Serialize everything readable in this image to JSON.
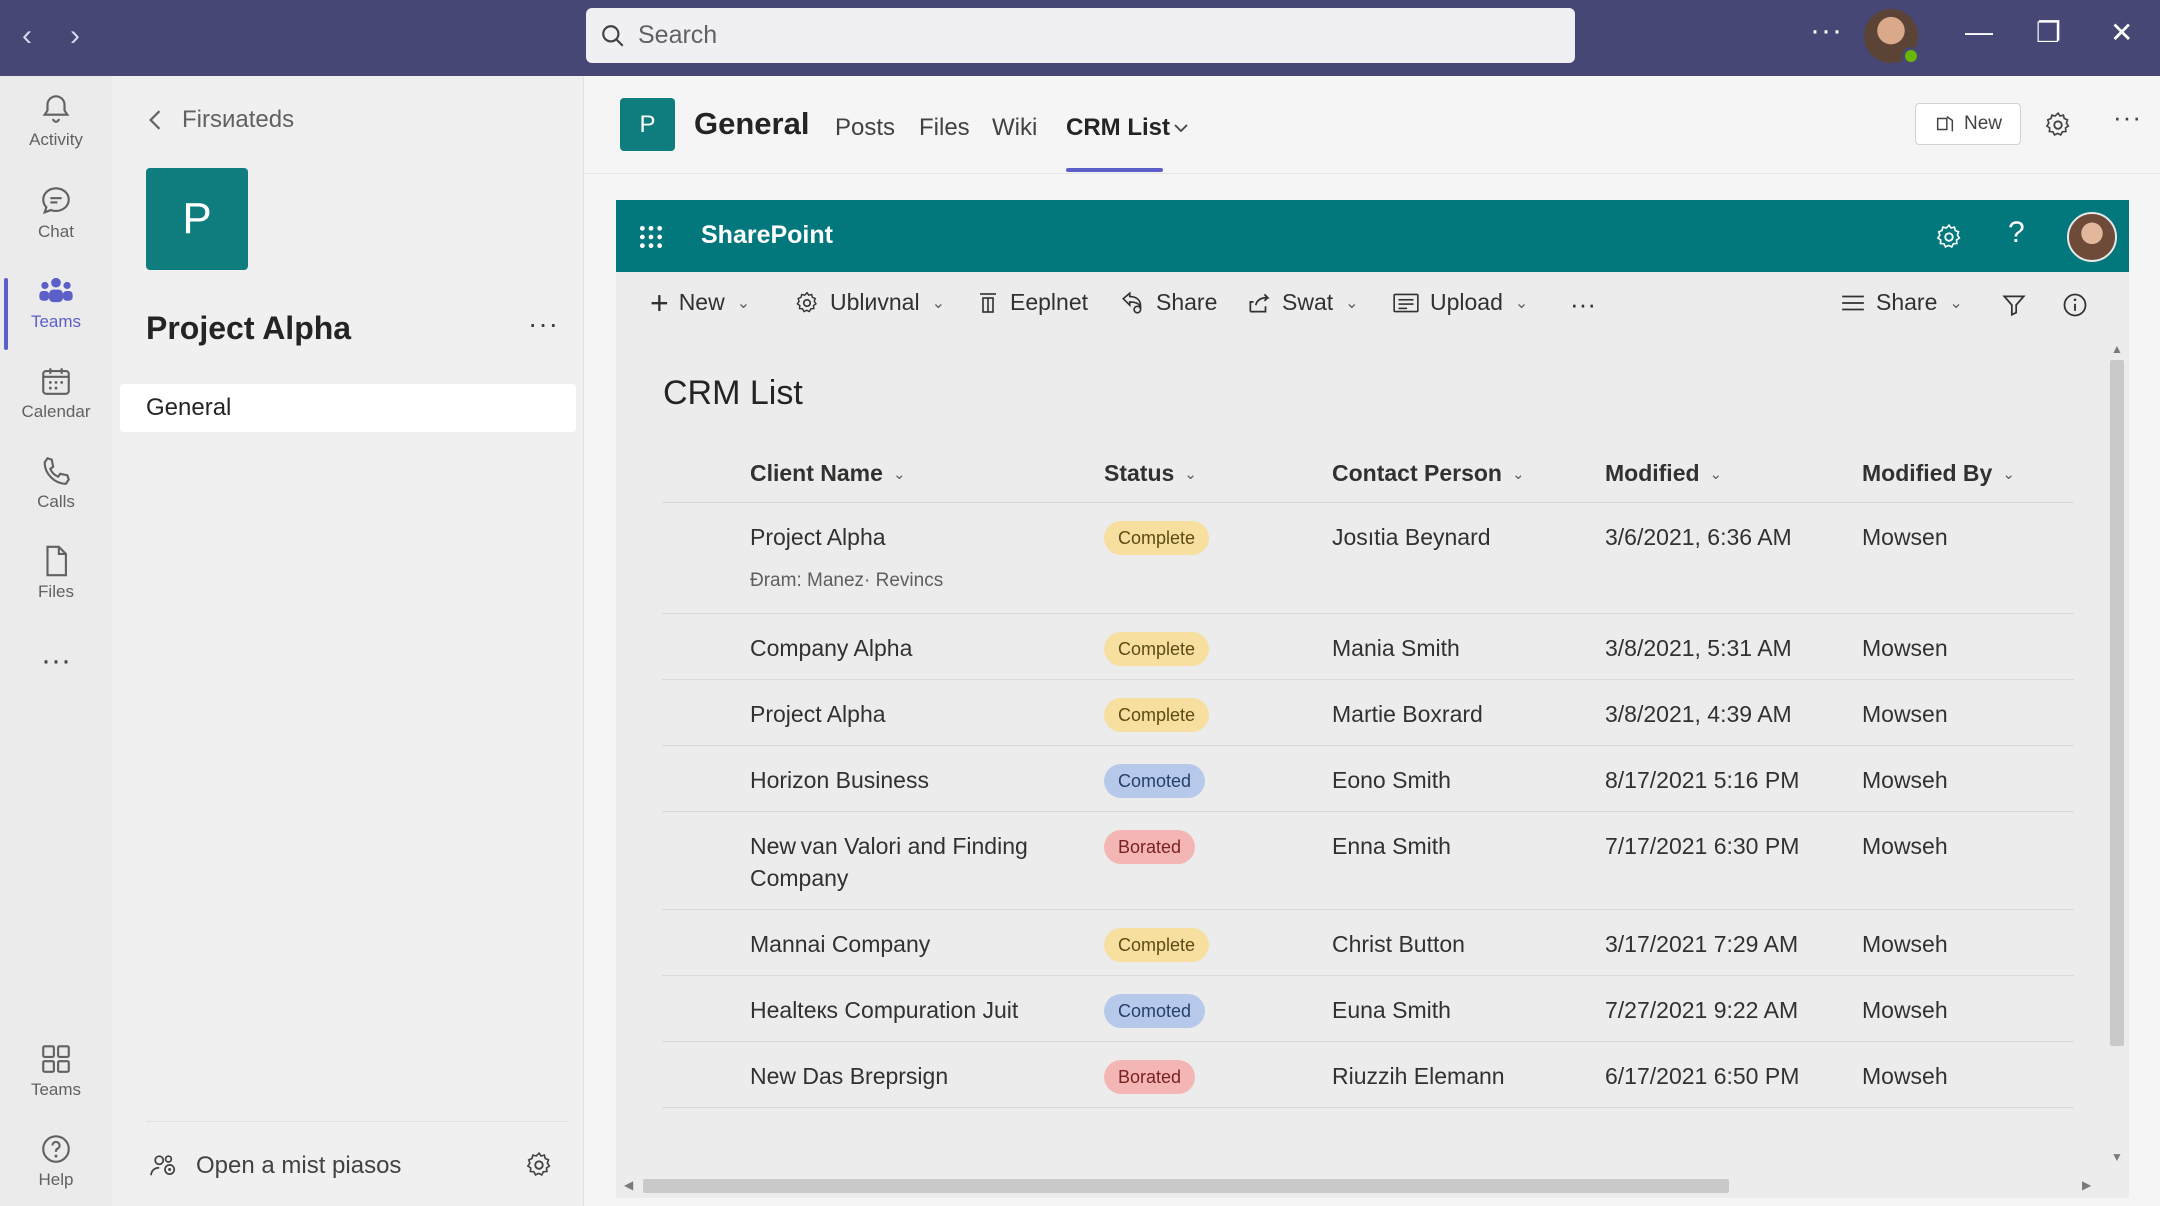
{
  "titlebar": {
    "search_placeholder": "Search",
    "more": "···"
  },
  "rail": {
    "items": [
      {
        "label": "Activity",
        "icon": "bell-icon"
      },
      {
        "label": "Chat",
        "icon": "chat-icon"
      },
      {
        "label": "Teams",
        "icon": "teams-icon",
        "active": true
      },
      {
        "label": "Calendar",
        "icon": "calendar-icon"
      },
      {
        "label": "Calls",
        "icon": "phone-icon"
      },
      {
        "label": "Files",
        "icon": "file-icon"
      }
    ],
    "more": "···",
    "bottom": [
      {
        "label": "Teams",
        "icon": "apps-icon"
      },
      {
        "label": "Help",
        "icon": "help-icon"
      }
    ]
  },
  "pane": {
    "back_label": "Firsиаteds",
    "team_initial": "P",
    "team_name": "Project Alpha",
    "more": "···",
    "channel": "General",
    "footer_label": "Open a mist piasos"
  },
  "header": {
    "channel_initial": "P",
    "channel_name": "General",
    "tabs": [
      "Posts",
      "Files",
      "Wiki",
      "CRM List"
    ],
    "new_label": "New",
    "more": "···"
  },
  "sharepoint": {
    "title": "SharePoint",
    "help": "?",
    "commands": {
      "new": "New",
      "upload1": "Ublиvnal",
      "export": "Eeplnet",
      "share": "Share",
      "swat": "Swat",
      "upload": "Upload",
      "more": "···",
      "share_right": "Share"
    },
    "list_title": "CRM List",
    "columns": [
      "Client Name",
      "Status",
      "Contact Person",
      "Modified",
      "Modified By"
    ],
    "rows": [
      {
        "client": "Project Alpha",
        "sub": "Đram: Manez· Revincs",
        "status": "Complete",
        "status_type": "complete",
        "contact": "Josıtia Beynard",
        "modified": "3/6/2021, 6:36 AM",
        "by": "Mowsen"
      },
      {
        "client": "Company Alpha",
        "status": "Complete",
        "status_type": "complete",
        "contact": "Mania Smith",
        "modified": "3/8/2021, 5:31 AM",
        "by": "Mowsen"
      },
      {
        "client": "Project Alpha",
        "status": "Complete",
        "status_type": "complete",
        "contact": "Martie Boxrard",
        "modified": "3/8/2021, 4:39 AM",
        "by": "Mowsen"
      },
      {
        "client": "Horizon Business",
        "status": "Comoted",
        "status_type": "comoted",
        "contact": "Eono Smith",
        "modified": "8/17/2021 5:16 PM",
        "by": "Mowseh"
      },
      {
        "client": "New van Valori and Finding",
        "client2": "Company",
        "status": "Borated",
        "status_type": "borated",
        "contact": "Enna Smith",
        "modified": "7/17/2021 6:30 PM",
        "by": "Mowseh"
      },
      {
        "client": "Mannai Company",
        "status": "Complete",
        "status_type": "complete",
        "contact": "Christ Buttоn",
        "modified": "3/17/2021 7:29 AM",
        "by": "Mowseh"
      },
      {
        "client": "Healteкs Compuration Juit",
        "status": "Comoted",
        "status_type": "comoted",
        "contact": "Euna Smith",
        "modified": "7/27/2021 9:22 AM",
        "by": "Mowseh"
      },
      {
        "client": "New Das Breprsign",
        "status": "Borated",
        "status_type": "borated",
        "contact": "Riuzzih Elemann",
        "modified": "6/17/2021 6:50 PM",
        "by": "Mowseh"
      }
    ]
  },
  "colors": {
    "titlebar": "#464775",
    "sharepoint_bar": "#03787c",
    "team_tile": "#0f7d7e",
    "accent": "#5b5fc7"
  }
}
